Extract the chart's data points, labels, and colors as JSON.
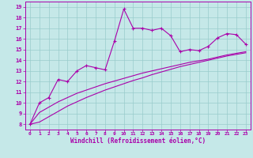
{
  "xlabel": "Windchill (Refroidissement éolien,°C)",
  "background_color": "#c5e8e8",
  "line_color": "#aa00aa",
  "grid_color": "#99cccc",
  "x_data": [
    0,
    1,
    2,
    3,
    4,
    5,
    6,
    7,
    8,
    9,
    10,
    11,
    12,
    13,
    14,
    15,
    16,
    17,
    18,
    19,
    20,
    21,
    22,
    23
  ],
  "y_main": [
    8.0,
    10.0,
    10.5,
    12.2,
    12.0,
    13.0,
    13.5,
    13.3,
    13.1,
    15.8,
    18.8,
    17.0,
    17.0,
    16.8,
    17.0,
    16.3,
    14.8,
    15.0,
    14.9,
    15.3,
    16.1,
    16.5,
    16.4,
    15.5
  ],
  "y_line1": [
    8.0,
    9.1,
    9.6,
    10.1,
    10.5,
    10.9,
    11.2,
    11.5,
    11.8,
    12.05,
    12.3,
    12.55,
    12.8,
    13.0,
    13.2,
    13.4,
    13.6,
    13.8,
    13.95,
    14.1,
    14.3,
    14.5,
    14.65,
    14.8
  ],
  "y_line2": [
    8.0,
    8.2,
    8.7,
    9.2,
    9.7,
    10.1,
    10.5,
    10.85,
    11.2,
    11.5,
    11.8,
    12.1,
    12.35,
    12.65,
    12.9,
    13.15,
    13.4,
    13.6,
    13.8,
    14.0,
    14.2,
    14.4,
    14.55,
    14.7
  ],
  "yticks": [
    8,
    9,
    10,
    11,
    12,
    13,
    14,
    15,
    16,
    17,
    18,
    19
  ],
  "xtick_labels": [
    "0",
    "1",
    "2",
    "3",
    "4",
    "5",
    "6",
    "7",
    "8",
    "9",
    "10",
    "11",
    "12",
    "13",
    "14",
    "15",
    "16",
    "17",
    "18",
    "19",
    "20",
    "21",
    "22",
    "23"
  ],
  "ylim": [
    7.5,
    19.5
  ],
  "xlim": [
    -0.5,
    23.5
  ]
}
